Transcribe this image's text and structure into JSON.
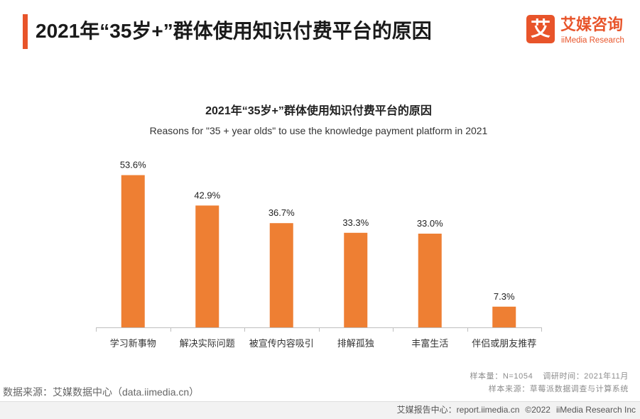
{
  "header": {
    "title": "2021年“35岁+”群体使用知识付费平台的原因",
    "logo": {
      "mark": "艾",
      "name_cn": "艾媒咨询",
      "name_en": "iiMedia Research",
      "icon": "brand-logo-icon"
    }
  },
  "chart_data": {
    "type": "bar",
    "title": "2021年“35岁+”群体使用知识付费平台的原因",
    "subtitle": "Reasons for \"35 + year olds\" to use the knowledge payment platform in 2021",
    "categories": [
      "学习新事物",
      "解决实际问题",
      "被宣传内容吸引",
      "排解孤独",
      "丰富生活",
      "伴侣或朋友推荐"
    ],
    "values": [
      53.6,
      42.9,
      36.7,
      33.3,
      33.0,
      7.3
    ],
    "data_labels": [
      "53.6%",
      "42.9%",
      "36.7%",
      "33.3%",
      "33.0%",
      "7.3%"
    ],
    "ylim": [
      0,
      60
    ],
    "grid": false,
    "legend": "none"
  },
  "notes": {
    "sample_size": "样本量：N=1054",
    "survey_time": "调研时间：2021年11月",
    "sample_source": "样本来源：草莓派数据调查与计算系统"
  },
  "source": "数据来源：艾媒数据中心（data.iimedia.cn）",
  "footer": {
    "report_center": "艾媒报告中心：report.iimedia.cn",
    "copyright": "©2022",
    "company": "iiMedia Research Inc"
  },
  "colors": {
    "accent": "#E8542A",
    "bar": "#EE7F33",
    "axis": "#BFBFBF"
  }
}
